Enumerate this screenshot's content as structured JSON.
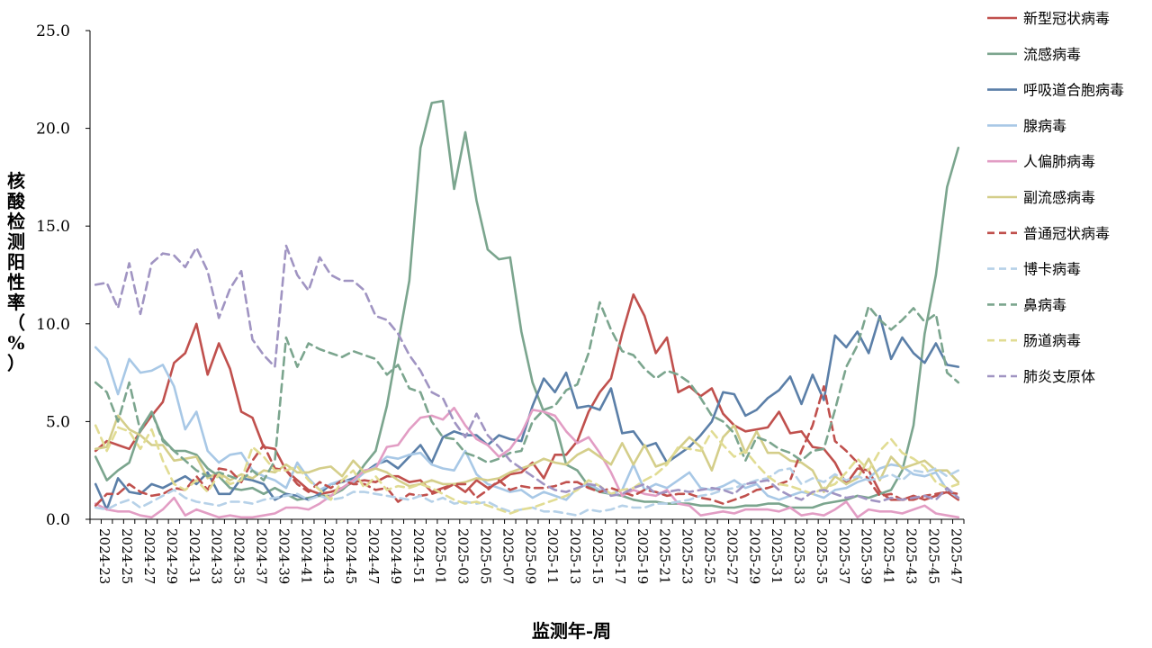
{
  "chart_data": {
    "type": "line",
    "title": "",
    "xlabel": "监测年-周",
    "ylabel": "核酸检测阳性率（%）",
    "ylim": [
      0,
      25
    ],
    "yticks": [
      "0.0",
      "5.0",
      "10.0",
      "15.0",
      "20.0",
      "25.0"
    ],
    "ytick_values": [
      0,
      5,
      10,
      15,
      20,
      25
    ],
    "xtick_labels": [
      "2024-23",
      "2024-25",
      "2024-27",
      "2024-29",
      "2024-31",
      "2024-33",
      "2024-35",
      "2024-37",
      "2024-39",
      "2024-41",
      "2024-43",
      "2024-45",
      "2024-47",
      "2024-49",
      "2024-51",
      "2025-01",
      "2025-03",
      "2025-05",
      "2025-07",
      "2025-09",
      "2025-11",
      "2025-13",
      "2025-15",
      "2025-17",
      "2025-19",
      "2025-21",
      "2025-23",
      "2025-25",
      "2025-27",
      "2025-29",
      "2025-31",
      "2025-33",
      "2025-35",
      "2025-37",
      "2025-39",
      "2025-41",
      "2025-43",
      "2025-45",
      "2025-47"
    ],
    "grid": false,
    "legend_position": "right",
    "series": [
      {
        "name": "新型冠状病毒",
        "color": "#C0504D",
        "dash": false,
        "values": [
          3.5,
          4.0,
          3.8,
          3.6,
          4.5,
          5.3,
          6.0,
          8.0,
          8.5,
          10.0,
          7.4,
          9.0,
          7.7,
          5.5,
          5.2,
          3.7,
          3.6,
          2.5,
          2.0,
          1.5,
          1.3,
          1.4,
          1.6,
          1.9,
          2.0,
          1.9,
          2.2,
          2.2,
          1.9,
          2.0,
          1.4,
          1.6,
          1.8,
          1.4,
          2.0,
          1.6,
          1.9,
          2.3,
          2.4,
          2.9,
          2.1,
          3.3,
          3.3,
          4.0,
          5.5,
          6.5,
          7.2,
          9.5,
          11.5,
          10.4,
          8.5,
          9.3,
          6.5,
          6.8,
          6.3,
          6.7,
          5.4,
          4.8,
          4.5,
          4.6,
          4.7,
          5.5,
          4.4,
          4.5,
          3.7,
          3.6,
          2.9,
          1.8,
          2.6,
          2.5,
          1.4,
          1.0,
          1.0,
          1.2,
          1.0,
          1.2,
          1.4,
          1.0
        ]
      },
      {
        "name": "流感病毒",
        "color": "#7BA58E",
        "dash": false,
        "values": [
          3.2,
          2.0,
          2.5,
          2.9,
          4.6,
          5.5,
          4.1,
          3.5,
          3.5,
          3.3,
          2.6,
          2.2,
          1.6,
          1.5,
          1.6,
          1.3,
          1.6,
          1.3,
          1.0,
          1.1,
          1.2,
          1.2,
          1.5,
          2.0,
          2.8,
          3.5,
          5.8,
          9.0,
          12.2,
          19.0,
          21.3,
          21.4,
          16.9,
          19.8,
          16.3,
          13.8,
          13.3,
          13.4,
          9.6,
          7.0,
          5.5,
          5.0,
          2.8,
          2.5,
          1.7,
          1.4,
          1.3,
          1.2,
          1.0,
          0.9,
          0.9,
          0.8,
          0.8,
          0.8,
          0.7,
          0.7,
          0.6,
          0.6,
          0.7,
          0.7,
          0.8,
          0.8,
          0.6,
          0.6,
          0.6,
          0.8,
          0.9,
          1.0,
          1.2,
          1.1,
          1.3,
          1.5,
          2.5,
          4.8,
          9.5,
          12.5,
          17.0,
          19.0
        ]
      },
      {
        "name": "呼吸道合胞病毒",
        "color": "#5B7FA8",
        "dash": false,
        "values": [
          1.8,
          0.5,
          2.1,
          1.4,
          1.3,
          1.8,
          1.6,
          1.9,
          2.2,
          1.8,
          2.4,
          1.3,
          1.3,
          2.1,
          2.0,
          1.8,
          1.0,
          1.3,
          1.2,
          1.0,
          1.3,
          1.8,
          1.9,
          2.1,
          2.4,
          2.8,
          3.0,
          2.6,
          3.2,
          3.8,
          2.9,
          4.2,
          4.5,
          4.3,
          4.3,
          3.8,
          4.3,
          4.1,
          4.0,
          5.8,
          7.2,
          6.5,
          7.5,
          5.7,
          5.8,
          5.6,
          6.7,
          4.4,
          4.5,
          3.7,
          3.9,
          2.9,
          3.3,
          3.7,
          4.3,
          5.0,
          6.5,
          6.4,
          5.3,
          5.6,
          6.2,
          6.6,
          7.3,
          5.9,
          7.4,
          6.1,
          9.4,
          8.8,
          9.6,
          8.5,
          10.4,
          8.2,
          9.3,
          8.5,
          8.0,
          9.0,
          7.9,
          7.8
        ]
      },
      {
        "name": "腺病毒",
        "color": "#A8C8E6",
        "dash": false,
        "values": [
          8.8,
          8.2,
          6.4,
          8.2,
          7.5,
          7.6,
          7.9,
          6.8,
          4.6,
          5.5,
          3.5,
          2.9,
          3.3,
          3.4,
          2.5,
          2.2,
          2.0,
          1.6,
          2.9,
          2.1,
          1.5,
          1.8,
          2.0,
          1.9,
          2.4,
          2.7,
          3.2,
          3.1,
          3.3,
          3.4,
          2.8,
          2.6,
          2.5,
          3.5,
          2.3,
          1.8,
          1.6,
          1.4,
          1.5,
          1.1,
          1.4,
          1.2,
          1.0,
          1.6,
          1.8,
          1.5,
          1.3,
          1.5,
          2.8,
          1.5,
          1.8,
          1.6,
          2.0,
          2.4,
          1.6,
          1.5,
          1.7,
          2.0,
          1.6,
          1.8,
          1.2,
          1.0,
          1.2,
          1.4,
          1.3,
          1.1,
          1.5,
          1.6,
          1.9,
          2.1,
          2.6,
          2.8,
          2.7,
          2.3,
          2.2,
          2.4,
          1.5,
          1.1
        ]
      },
      {
        "name": "人偏肺病毒",
        "color": "#E29DC4",
        "dash": false,
        "values": [
          0.8,
          0.5,
          0.4,
          0.4,
          0.2,
          0.1,
          0.5,
          1.1,
          0.2,
          0.5,
          0.3,
          0.1,
          0.2,
          0.1,
          0.1,
          0.2,
          0.3,
          0.6,
          0.6,
          0.5,
          0.8,
          1.2,
          1.6,
          2.0,
          2.5,
          2.6,
          3.7,
          3.8,
          4.6,
          5.2,
          5.3,
          5.1,
          5.7,
          4.8,
          4.1,
          3.8,
          3.2,
          3.6,
          4.4,
          5.6,
          5.5,
          5.3,
          4.5,
          3.9,
          4.2,
          3.4,
          2.4,
          1.2,
          1.5,
          1.3,
          1.2,
          1.5,
          0.8,
          0.7,
          0.2,
          0.3,
          0.4,
          0.3,
          0.5,
          0.5,
          0.5,
          0.4,
          0.6,
          0.2,
          0.3,
          0.2,
          0.5,
          0.9,
          0.1,
          0.5,
          0.4,
          0.4,
          0.3,
          0.5,
          0.7,
          0.3,
          0.2,
          0.1
        ]
      },
      {
        "name": "副流感病毒",
        "color": "#D4CE8A",
        "dash": false,
        "values": [
          3.6,
          3.7,
          5.3,
          4.6,
          4.3,
          3.8,
          3.8,
          3.0,
          3.1,
          3.2,
          2.1,
          2.4,
          2.0,
          2.3,
          2.1,
          2.5,
          2.4,
          2.8,
          2.4,
          2.4,
          2.6,
          2.7,
          2.2,
          3.0,
          2.4,
          2.6,
          2.4,
          2.0,
          1.7,
          1.8,
          2.0,
          1.8,
          1.8,
          1.9,
          2.1,
          2.0,
          2.1,
          2.4,
          2.6,
          2.8,
          3.1,
          2.9,
          2.8,
          3.3,
          3.6,
          3.2,
          2.8,
          3.9,
          2.8,
          3.8,
          2.7,
          2.9,
          3.6,
          4.2,
          3.7,
          2.5,
          4.2,
          4.8,
          3.4,
          4.5,
          3.4,
          3.4,
          3.0,
          2.9,
          2.5,
          1.4,
          2.2,
          1.8,
          2.1,
          3.1,
          2.0,
          3.2,
          2.6,
          2.8,
          3.0,
          2.5,
          2.5,
          1.9
        ]
      },
      {
        "name": "普通冠状病毒",
        "color": "#C0504D",
        "dash": true,
        "values": [
          0.7,
          1.3,
          1.3,
          1.8,
          1.4,
          1.2,
          1.3,
          1.6,
          1.5,
          2.2,
          1.5,
          2.6,
          2.5,
          1.9,
          3.0,
          3.8,
          2.6,
          2.5,
          1.8,
          1.4,
          1.9,
          1.6,
          2.0,
          1.8,
          1.8,
          1.5,
          1.6,
          0.9,
          1.3,
          1.2,
          1.3,
          1.5,
          1.8,
          1.8,
          1.1,
          1.5,
          2.0,
          1.5,
          1.7,
          1.6,
          1.6,
          1.7,
          1.9,
          1.9,
          1.6,
          1.4,
          1.6,
          1.4,
          1.2,
          1.5,
          1.4,
          1.2,
          1.3,
          1.3,
          1.1,
          1.0,
          0.8,
          1.0,
          1.2,
          1.5,
          1.6,
          1.8,
          2.0,
          3.5,
          4.8,
          6.8,
          4.0,
          3.5,
          2.9,
          2.0,
          1.2,
          1.3,
          1.0,
          1.0,
          1.2,
          1.3,
          1.4,
          1.3
        ]
      },
      {
        "name": "博卡病毒",
        "color": "#B6D1E8",
        "dash": true,
        "values": [
          0.6,
          0.5,
          0.8,
          1.0,
          0.6,
          0.9,
          1.2,
          1.5,
          1.1,
          0.9,
          0.8,
          0.7,
          0.9,
          0.9,
          0.8,
          1.0,
          1.1,
          1.2,
          1.3,
          1.0,
          1.2,
          1.0,
          1.1,
          1.4,
          1.4,
          1.3,
          1.2,
          1.1,
          1.0,
          1.2,
          0.9,
          1.1,
          0.8,
          0.9,
          0.8,
          0.9,
          0.6,
          0.4,
          0.5,
          0.6,
          0.4,
          0.4,
          0.3,
          0.2,
          0.5,
          0.4,
          0.5,
          0.7,
          0.6,
          0.6,
          0.8,
          0.8,
          0.9,
          1.0,
          1.2,
          1.3,
          1.5,
          1.6,
          1.8,
          2.0,
          2.1,
          2.5,
          2.6,
          1.8,
          2.1,
          1.9,
          2.3,
          2.0,
          2.2,
          2.0,
          2.1,
          2.3,
          2.0,
          2.5,
          2.4,
          2.6,
          2.2,
          2.5
        ]
      },
      {
        "name": "鼻病毒",
        "color": "#7BA58E",
        "dash": true,
        "values": [
          7.0,
          6.5,
          5.0,
          7.0,
          4.5,
          5.5,
          4.0,
          3.5,
          3.0,
          2.5,
          2.2,
          2.4,
          2.2,
          2.0,
          2.5,
          2.0,
          3.0,
          9.3,
          7.8,
          9.0,
          8.7,
          8.5,
          8.3,
          8.6,
          8.4,
          8.2,
          7.4,
          7.9,
          6.7,
          6.5,
          5.0,
          4.2,
          4.1,
          3.4,
          3.2,
          2.9,
          3.1,
          3.4,
          3.5,
          5.0,
          5.6,
          5.8,
          6.6,
          6.9,
          8.5,
          11.1,
          9.7,
          8.6,
          8.4,
          7.7,
          7.2,
          7.6,
          7.4,
          7.0,
          6.2,
          5.3,
          5.0,
          4.4,
          3.0,
          4.2,
          4.0,
          3.6,
          3.4,
          3.0,
          3.5,
          3.6,
          5.6,
          7.8,
          8.9,
          10.9,
          10.2,
          9.7,
          10.2,
          10.8,
          10.1,
          10.5,
          7.5,
          7.0
        ]
      },
      {
        "name": "肠道病毒",
        "color": "#E1DC93",
        "dash": true,
        "values": [
          4.8,
          3.5,
          4.7,
          4.5,
          3.6,
          4.6,
          3.0,
          1.8,
          1.5,
          2.0,
          1.4,
          2.3,
          1.8,
          2.0,
          3.7,
          3.2,
          2.5,
          2.5,
          2.7,
          2.0,
          1.5,
          1.0,
          2.0,
          2.5,
          1.6,
          2.2,
          1.5,
          1.7,
          1.6,
          1.8,
          1.6,
          1.3,
          1.0,
          0.8,
          0.9,
          0.7,
          0.5,
          0.3,
          0.5,
          0.6,
          0.8,
          1.0,
          1.2,
          1.5,
          2.0,
          1.7,
          1.3,
          1.5,
          1.6,
          2.0,
          2.3,
          2.8,
          3.7,
          3.6,
          3.5,
          4.5,
          3.8,
          3.2,
          3.5,
          2.8,
          2.2,
          1.8,
          1.7,
          1.5,
          1.3,
          1.6,
          1.8,
          2.4,
          3.1,
          2.5,
          3.5,
          4.1,
          3.4,
          3.1,
          2.7,
          1.9,
          1.6,
          1.8
        ]
      },
      {
        "name": "肺炎支原体",
        "color": "#A094C2",
        "dash": true,
        "values": [
          12.0,
          12.1,
          10.8,
          13.1,
          10.5,
          13.1,
          13.6,
          13.5,
          12.9,
          13.9,
          12.7,
          10.3,
          11.8,
          12.7,
          9.2,
          8.4,
          7.8,
          14.0,
          12.5,
          11.7,
          13.4,
          12.5,
          12.2,
          12.2,
          11.7,
          10.4,
          10.2,
          9.5,
          8.4,
          7.6,
          6.5,
          6.2,
          5.0,
          4.2,
          5.4,
          4.3,
          3.7,
          3.0,
          2.6,
          2.2,
          1.8,
          1.5,
          1.4,
          1.6,
          1.8,
          1.7,
          1.2,
          1.3,
          1.6,
          1.8,
          1.3,
          1.4,
          1.5,
          1.4,
          1.5,
          1.6,
          1.5,
          1.3,
          1.8,
          1.9,
          2.0,
          1.5,
          1.2,
          1.0,
          1.4,
          1.5,
          1.3,
          1.1,
          1.2,
          1.0,
          0.9,
          1.1,
          1.0,
          1.1,
          1.2,
          1.0,
          1.6,
          1.1
        ]
      }
    ]
  }
}
